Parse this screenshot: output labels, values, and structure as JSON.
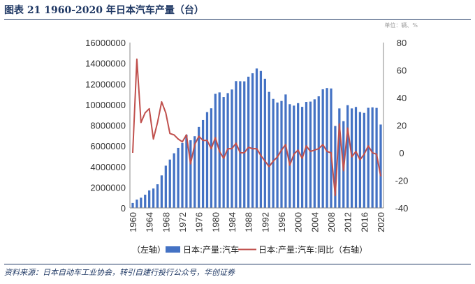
{
  "title": "图表 21  1960-2020 年日本汽车产量（台）",
  "unit_note": "单位：辆、%",
  "source": "资料来源：日本自动车工业协会，转引自建行投行公众号，华创证券",
  "colors": {
    "bar": "#4472c4",
    "line": "#c0504d",
    "title": "#1f3864"
  },
  "chart_data": {
    "type": "bar+line",
    "title": "",
    "x_tick_labels": [
      "1960",
      "1964",
      "1968",
      "1972",
      "1976",
      "1980",
      "1984",
      "1988",
      "1992",
      "1996",
      "2000",
      "2004",
      "2008",
      "2012",
      "2016",
      "2020"
    ],
    "y_left": {
      "min": 0,
      "max": 16000000,
      "step": 2000000,
      "tick_labels": [
        "0",
        "2000000",
        "4000000",
        "6000000",
        "8000000",
        "10000000",
        "12000000",
        "14000000",
        "16000000"
      ]
    },
    "y_right": {
      "min": -40,
      "max": 80,
      "step": 20,
      "tick_labels": [
        "-40",
        "-20",
        "0",
        "20",
        "40",
        "60",
        "80"
      ]
    },
    "legend": {
      "prefix": "（左轴）",
      "bar_label": "日本:产量:汽车",
      "line_label": "日本:产量:汽车:同比（右轴）"
    },
    "grid": false,
    "series": [
      {
        "name": "日本:产量:汽车",
        "type": "bar",
        "axis": "left",
        "x": [
          1960,
          1961,
          1962,
          1963,
          1964,
          1965,
          1966,
          1967,
          1968,
          1969,
          1970,
          1971,
          1972,
          1973,
          1974,
          1975,
          1976,
          1977,
          1978,
          1979,
          1980,
          1981,
          1982,
          1983,
          1984,
          1985,
          1986,
          1987,
          1988,
          1989,
          1990,
          1991,
          1992,
          1993,
          1994,
          1995,
          1996,
          1997,
          1998,
          1999,
          2000,
          2001,
          2002,
          2003,
          2004,
          2005,
          2006,
          2007,
          2008,
          2009,
          2010,
          2011,
          2012,
          2013,
          2014,
          2015,
          2016,
          2017,
          2018,
          2019,
          2020
        ],
        "values": [
          480000,
          810000,
          990000,
          1280000,
          1700000,
          1880000,
          2290000,
          3150000,
          4090000,
          4680000,
          5290000,
          5810000,
          6290000,
          7080000,
          6550000,
          6940000,
          7840000,
          8510000,
          9270000,
          9640000,
          11040000,
          11180000,
          10730000,
          11110000,
          11460000,
          12270000,
          12260000,
          12250000,
          12700000,
          13030000,
          13490000,
          13250000,
          12500000,
          11230000,
          10550000,
          10200000,
          10350000,
          10980000,
          10040000,
          9900000,
          10140000,
          9780000,
          10260000,
          10290000,
          10510000,
          10800000,
          11480000,
          11600000,
          11560000,
          7930000,
          9630000,
          8400000,
          9940000,
          9630000,
          9770000,
          9280000,
          9200000,
          9690000,
          9730000,
          9680000,
          8070000
        ]
      },
      {
        "name": "日本:产量:汽车:同比（右轴）",
        "type": "line",
        "axis": "right",
        "x": [
          1960,
          1961,
          1962,
          1963,
          1964,
          1965,
          1966,
          1967,
          1968,
          1969,
          1970,
          1971,
          1972,
          1973,
          1974,
          1975,
          1976,
          1977,
          1978,
          1979,
          1980,
          1981,
          1982,
          1983,
          1984,
          1985,
          1986,
          1987,
          1988,
          1989,
          1990,
          1991,
          1992,
          1993,
          1994,
          1995,
          1996,
          1997,
          1998,
          1999,
          2000,
          2001,
          2002,
          2003,
          2004,
          2005,
          2006,
          2007,
          2008,
          2009,
          2010,
          2011,
          2012,
          2013,
          2014,
          2015,
          2016,
          2017,
          2018,
          2019,
          2020
        ],
        "values": [
          0,
          68,
          22,
          29,
          32,
          10,
          22,
          37,
          29,
          14,
          13,
          10,
          8,
          13,
          -8,
          6,
          12,
          9,
          9,
          3,
          11,
          1,
          -4,
          3,
          3,
          7,
          0,
          0,
          4,
          3,
          3,
          -2,
          -6,
          -10,
          -6,
          -3,
          2,
          6,
          -9,
          -1,
          2,
          -4,
          5,
          1,
          2,
          3,
          6,
          1,
          0,
          -31,
          21,
          -13,
          18,
          -3,
          1,
          -5,
          -1,
          5,
          0,
          -1,
          -17
        ]
      }
    ]
  }
}
